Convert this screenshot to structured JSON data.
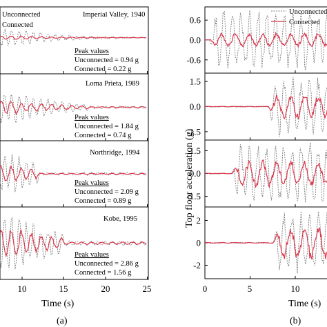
{
  "figure": {
    "panel_labels": [
      "(a)",
      "(b)"
    ]
  },
  "chart_data": [
    {
      "panel": "(a)",
      "type": "line",
      "xlabel": "Time (s)",
      "x_ticks": [
        "10",
        "15",
        "20",
        "25"
      ],
      "xlim": [
        7,
        25
      ],
      "series_names": [
        "Unconnected",
        "Connected"
      ],
      "series_colors": [
        "#7a7a7a",
        "#d9364a"
      ],
      "rows": [
        {
          "earthquake": "Imperial Valley, 1940",
          "peak_header": "Peak values",
          "peak_unconnected": "Unconnected = 0.94 g",
          "peak_connected": "Connected = 0.22 g",
          "legend": [
            "Unconnected",
            "Connected"
          ],
          "amp_unconnected": 0.94,
          "amp_connected": 0.22,
          "active_from": 7,
          "active_to": 25
        },
        {
          "earthquake": "Loma Prieta, 1989",
          "peak_header": "Peak values",
          "peak_unconnected": "Unconnected = 1.84 g",
          "peak_connected": "Connected = 0.74 g",
          "amp_unconnected": 1.84,
          "amp_connected": 0.74,
          "active_from": 7,
          "active_to": 18
        },
        {
          "earthquake": "Northridge, 1994",
          "peak_header": "Peak values",
          "peak_unconnected": "Unconnected = 2.09 g",
          "peak_connected": "Connected = 0.89 g",
          "amp_unconnected": 2.09,
          "amp_connected": 0.89,
          "active_from": 7,
          "active_to": 12
        },
        {
          "earthquake": "Kobe, 1995",
          "peak_header": "Peak values",
          "peak_unconnected": "Unconnected = 2.86 g",
          "peak_connected": "Connected = 1.56 g",
          "amp_unconnected": 2.86,
          "amp_connected": 1.56,
          "active_from": 7,
          "active_to": 15
        }
      ]
    },
    {
      "panel": "(b)",
      "type": "line",
      "xlabel": "Time (s)",
      "ylabel": "Top floor acceleration (g)",
      "x_ticks": [
        "0",
        "5",
        "10"
      ],
      "xlim": [
        0,
        14.5
      ],
      "series_names": [
        "Unconnected",
        "Connected"
      ],
      "series_colors": [
        "#7a7a7a",
        "#d9364a"
      ],
      "legend": [
        "Unconnected",
        "Connected"
      ],
      "rows": [
        {
          "yticks": [
            "0.6",
            "0.0",
            "-0.6"
          ],
          "ytick_values": [
            0.6,
            0,
            -0.6
          ],
          "ylim": [
            -1.0,
            1.0
          ],
          "amp_unconnected": 0.94,
          "amp_connected": 0.22,
          "start": 0.5
        },
        {
          "yticks": [
            "1.5",
            "0.0",
            "-1.5"
          ],
          "ytick_values": [
            1.5,
            0,
            -1.5
          ],
          "ylim": [
            -2.0,
            2.0
          ],
          "amp_unconnected": 1.84,
          "amp_connected": 0.74,
          "start": 7.0
        },
        {
          "yticks": [
            "1.5",
            "0.0",
            "-1.5"
          ],
          "ytick_values": [
            1.5,
            0,
            -1.5
          ],
          "ylim": [
            -2.2,
            2.2
          ],
          "amp_unconnected": 2.09,
          "amp_connected": 0.89,
          "start": 3.0
        },
        {
          "yticks": [
            "2",
            "0",
            "-2"
          ],
          "ytick_values": [
            2,
            0,
            -2
          ],
          "ylim": [
            -3.2,
            3.2
          ],
          "amp_unconnected": 2.86,
          "amp_connected": 1.56,
          "start": 7.5
        }
      ]
    }
  ]
}
